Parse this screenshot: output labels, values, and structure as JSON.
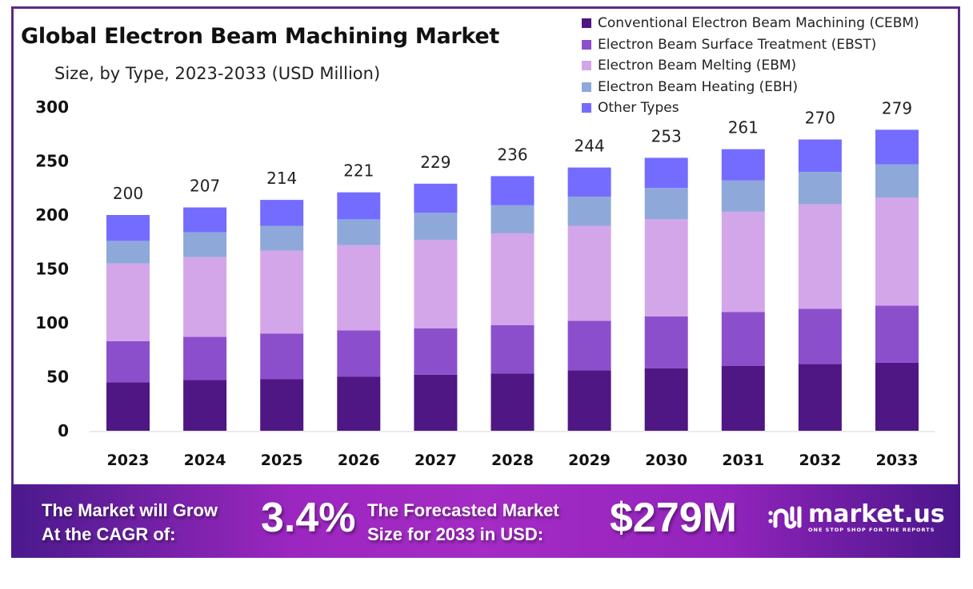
{
  "header": {
    "title": "Global Electron Beam Machining Market",
    "subtitle": "Size, by Type, 2023-2033 (USD Million)"
  },
  "legend": [
    {
      "label": "Conventional Electron Beam Machining (CEBM)",
      "color": "#4e1783"
    },
    {
      "label": "Electron Beam Surface Treatment (EBST)",
      "color": "#8c4fcc"
    },
    {
      "label": "Electron Beam Melting (EBM)",
      "color": "#d3a6ea"
    },
    {
      "label": "Electron Beam Heating (EBH)",
      "color": "#8fa8da"
    },
    {
      "label": "Other Types",
      "color": "#746cff"
    }
  ],
  "chart_data": {
    "type": "bar",
    "stacked": true,
    "title": "Global Electron Beam Machining Market",
    "subtitle": "Size, by Type, 2023-2033 (USD Million)",
    "xlabel": "",
    "ylabel": "",
    "ylim": [
      0,
      300
    ],
    "yticks": [
      0,
      50,
      100,
      150,
      200,
      250,
      300
    ],
    "grid": false,
    "legend_position": "top-right",
    "categories": [
      "2023",
      "2024",
      "2025",
      "2026",
      "2027",
      "2028",
      "2029",
      "2030",
      "2031",
      "2032",
      "2033"
    ],
    "totals": [
      200,
      207,
      214,
      221,
      229,
      236,
      244,
      253,
      261,
      270,
      279
    ],
    "series": [
      {
        "name": "Conventional Electron Beam Machining (CEBM)",
        "color": "#4e1783",
        "values": [
          45,
          47,
          48,
          50,
          52,
          53,
          56,
          58,
          60,
          62,
          63
        ]
      },
      {
        "name": "Electron Beam Surface Treatment (EBST)",
        "color": "#8c4fcc",
        "values": [
          38,
          40,
          42,
          43,
          43,
          45,
          46,
          48,
          50,
          51,
          53
        ]
      },
      {
        "name": "Electron Beam Melting (EBM)",
        "color": "#d3a6ea",
        "values": [
          72,
          74,
          77,
          79,
          82,
          85,
          88,
          90,
          93,
          97,
          100
        ]
      },
      {
        "name": "Electron Beam Heating (EBH)",
        "color": "#8fa8da",
        "values": [
          21,
          23,
          23,
          24,
          25,
          26,
          27,
          29,
          29,
          30,
          31
        ]
      },
      {
        "name": "Other Types",
        "color": "#746cff",
        "values": [
          24,
          23,
          24,
          25,
          27,
          27,
          27,
          28,
          29,
          30,
          32
        ]
      }
    ]
  },
  "banner": {
    "cagr_label_line1": "The Market will Grow",
    "cagr_label_line2": "At the CAGR of:",
    "cagr_value": "3.4%",
    "forecast_label_line1": "The Forecasted Market",
    "forecast_label_line2": "Size for 2033 in USD:",
    "forecast_value": "$279M",
    "logo_name": "market.us",
    "logo_tagline": "ONE STOP SHOP FOR THE REPORTS"
  }
}
